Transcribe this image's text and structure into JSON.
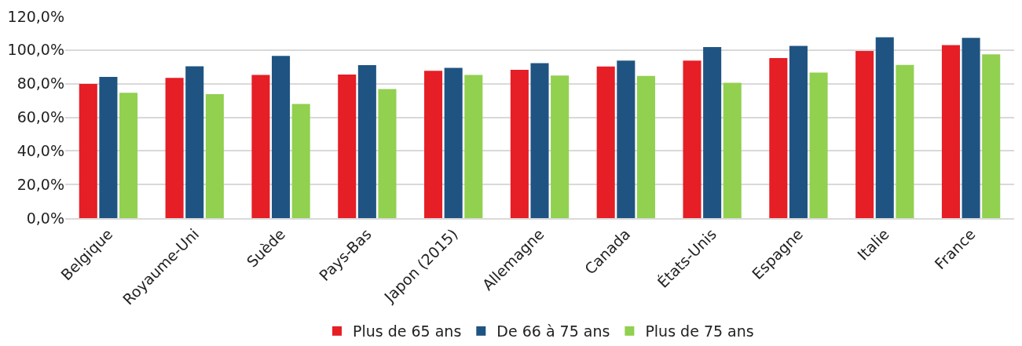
{
  "chart_data": {
    "type": "bar",
    "categories": [
      "Belgique",
      "Royaume-Uni",
      "Suède",
      "Pays-Bas",
      "Japon (2015)",
      "Allemagne",
      "Canada",
      "États-Unis",
      "Espagne",
      "Italie",
      "France"
    ],
    "series": [
      {
        "name": "Plus de 65 ans",
        "color": "#e61e25",
        "values": [
          79.8,
          83.5,
          85.2,
          85.4,
          87.7,
          88.2,
          90.2,
          93.7,
          95.2,
          99.5,
          103.0
        ]
      },
      {
        "name": "De 66 à 75 ans",
        "color": "#1f5482",
        "values": [
          84.0,
          90.4,
          96.5,
          91.1,
          89.4,
          92.2,
          93.7,
          101.8,
          102.5,
          107.6,
          107.3
        ]
      },
      {
        "name": "Plus de 75 ans",
        "color": "#92d050",
        "values": [
          74.6,
          73.8,
          67.9,
          76.8,
          85.2,
          84.9,
          84.6,
          80.6,
          86.6,
          91.2,
          97.5
        ]
      }
    ],
    "ylim": [
      0,
      120
    ],
    "yticks": [
      {
        "value": 0,
        "label": "0,0%"
      },
      {
        "value": 20,
        "label": "20,0%"
      },
      {
        "value": 40,
        "label": "40,0%"
      },
      {
        "value": 60,
        "label": "60,0%"
      },
      {
        "value": 80,
        "label": "80,0%"
      },
      {
        "value": 100,
        "label": "100,0%"
      },
      {
        "value": 120,
        "label": "120,0%"
      }
    ],
    "grid": "y",
    "legend": "bottom"
  }
}
